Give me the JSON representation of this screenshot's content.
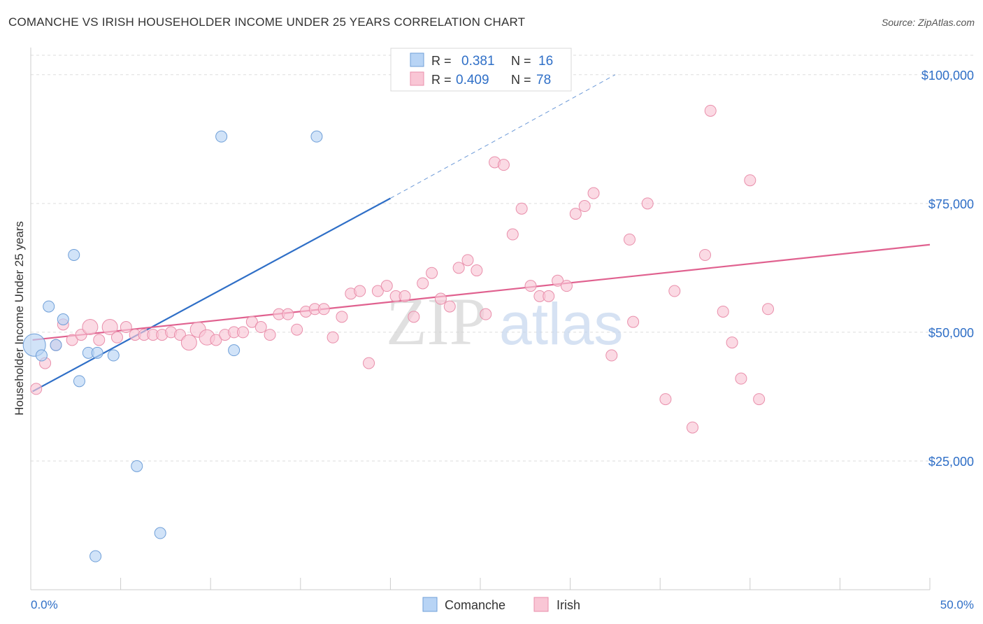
{
  "title": "COMANCHE VS IRISH HOUSEHOLDER INCOME UNDER 25 YEARS CORRELATION CHART",
  "source": "Source: ZipAtlas.com",
  "watermark": {
    "zip": "ZIP",
    "atlas": "atlas"
  },
  "chart_data": {
    "type": "scatter",
    "ylabel": "Householder Income Under 25 years",
    "xlim": [
      0,
      50
    ],
    "ylim": [
      0,
      105000
    ],
    "x_tick_labels": {
      "min": "0.0%",
      "max": "50.0%"
    },
    "y_ticks": [
      {
        "value": 25000,
        "label": "$25,000"
      },
      {
        "value": 50000,
        "label": "$50,000"
      },
      {
        "value": 75000,
        "label": "$75,000"
      },
      {
        "value": 100000,
        "label": "$100,000"
      }
    ],
    "legend_stats": [
      {
        "r_label": "R =",
        "r": "0.381",
        "n_label": "N =",
        "n": "16"
      },
      {
        "r_label": "R =",
        "r": "0.409",
        "n_label": "N =",
        "n": "78"
      }
    ],
    "series": [
      {
        "name": "Comanche",
        "fill": "#b8d4f5",
        "stroke": "#6f9fd8",
        "line_color": "#2f6fc7",
        "trend": {
          "x0": 0.1,
          "y0": 38500,
          "x1": 20.0,
          "y1": 76000,
          "dash_x1": 32.5,
          "dash_y1": 100000
        },
        "points": [
          [
            0.2,
            47500
          ],
          [
            0.6,
            45500
          ],
          [
            1.0,
            55000
          ],
          [
            1.4,
            47500
          ],
          [
            1.8,
            52500
          ],
          [
            2.4,
            65000
          ],
          [
            2.7,
            40500
          ],
          [
            3.2,
            46000
          ],
          [
            3.6,
            6500
          ],
          [
            3.7,
            46000
          ],
          [
            4.6,
            45500
          ],
          [
            5.9,
            24000
          ],
          [
            7.2,
            11000
          ],
          [
            10.6,
            88000
          ],
          [
            11.3,
            46500
          ],
          [
            15.9,
            88000
          ]
        ],
        "big": [
          0.2
        ]
      },
      {
        "name": "Irish",
        "fill": "#f9c6d5",
        "stroke": "#e98fab",
        "line_color": "#e0618f",
        "trend": {
          "x0": 0.1,
          "y0": 48500,
          "x1": 50.0,
          "y1": 67000
        },
        "points": [
          [
            0.3,
            39000
          ],
          [
            0.8,
            44000
          ],
          [
            1.4,
            47500
          ],
          [
            1.8,
            51500
          ],
          [
            2.3,
            48500
          ],
          [
            2.8,
            49500
          ],
          [
            3.3,
            51000
          ],
          [
            3.8,
            48500
          ],
          [
            4.4,
            51000
          ],
          [
            4.8,
            49000
          ],
          [
            5.3,
            51000
          ],
          [
            5.8,
            49500
          ],
          [
            6.3,
            49500
          ],
          [
            6.8,
            49500
          ],
          [
            7.3,
            49500
          ],
          [
            7.8,
            50000
          ],
          [
            8.3,
            49500
          ],
          [
            8.8,
            48000
          ],
          [
            9.3,
            50500
          ],
          [
            9.8,
            49000
          ],
          [
            10.3,
            48500
          ],
          [
            10.8,
            49500
          ],
          [
            11.3,
            50000
          ],
          [
            11.8,
            50000
          ],
          [
            12.3,
            52000
          ],
          [
            12.8,
            51000
          ],
          [
            13.3,
            49500
          ],
          [
            13.8,
            53500
          ],
          [
            14.3,
            53500
          ],
          [
            14.8,
            50500
          ],
          [
            15.3,
            54000
          ],
          [
            15.8,
            54500
          ],
          [
            16.3,
            54500
          ],
          [
            16.8,
            49000
          ],
          [
            17.3,
            53000
          ],
          [
            17.8,
            57500
          ],
          [
            18.3,
            58000
          ],
          [
            18.8,
            44000
          ],
          [
            19.3,
            58000
          ],
          [
            19.8,
            59000
          ],
          [
            20.3,
            57000
          ],
          [
            20.8,
            57000
          ],
          [
            21.3,
            53000
          ],
          [
            21.8,
            59500
          ],
          [
            22.3,
            61500
          ],
          [
            22.8,
            56500
          ],
          [
            23.3,
            55000
          ],
          [
            23.8,
            62500
          ],
          [
            24.3,
            64000
          ],
          [
            24.8,
            62000
          ],
          [
            25.3,
            53500
          ],
          [
            25.8,
            83000
          ],
          [
            26.3,
            82500
          ],
          [
            26.8,
            69000
          ],
          [
            27.3,
            74000
          ],
          [
            27.8,
            59000
          ],
          [
            28.3,
            57000
          ],
          [
            28.8,
            57000
          ],
          [
            29.3,
            60000
          ],
          [
            29.8,
            59000
          ],
          [
            30.3,
            73000
          ],
          [
            30.8,
            74500
          ],
          [
            31.3,
            77000
          ],
          [
            32.3,
            45500
          ],
          [
            33.3,
            68000
          ],
          [
            33.5,
            52000
          ],
          [
            34.3,
            75000
          ],
          [
            35.3,
            37000
          ],
          [
            35.8,
            58000
          ],
          [
            36.8,
            31500
          ],
          [
            37.5,
            65000
          ],
          [
            37.8,
            93000
          ],
          [
            38.5,
            54000
          ],
          [
            39.0,
            48000
          ],
          [
            39.5,
            41000
          ],
          [
            40.0,
            79500
          ],
          [
            40.5,
            37000
          ],
          [
            41.0,
            54500
          ]
        ],
        "big": [
          3.3,
          4.4,
          8.8,
          9.3,
          9.8
        ]
      }
    ]
  }
}
